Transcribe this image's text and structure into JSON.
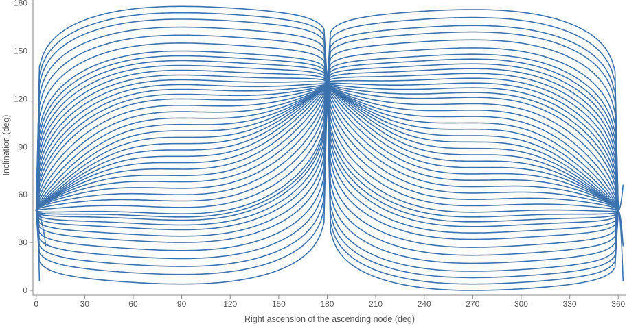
{
  "chart_data": {
    "type": "line",
    "title": "",
    "xlabel": "Right ascension of the ascending node (deg)",
    "ylabel": "Inclination (deg)",
    "xlim": [
      -2,
      365
    ],
    "ylim": [
      -3,
      182
    ],
    "xticks": [
      "0",
      "30",
      "60",
      "90",
      "120",
      "150",
      "180",
      "210",
      "240",
      "270",
      "300",
      "330",
      "360"
    ],
    "yticks": [
      "0",
      "30",
      "60",
      "90",
      "120",
      "150",
      "180"
    ],
    "grid": false,
    "legend": "none",
    "series_color": "#3c72ad",
    "convergence_points": [
      {
        "x": 0,
        "y": 50
      },
      {
        "x": 180,
        "y": 130
      },
      {
        "x": 360,
        "y": 50
      }
    ],
    "left_lobe_peaks": [
      4,
      10,
      15,
      20,
      25,
      30,
      34,
      38,
      41,
      44,
      46,
      48,
      52,
      56,
      60,
      64,
      68,
      72,
      76,
      80,
      84,
      88,
      92,
      96,
      100,
      104,
      108,
      112,
      116,
      120,
      123,
      126,
      129,
      132,
      135,
      138,
      141,
      144,
      147,
      150,
      155,
      160,
      165,
      170,
      174,
      178
    ],
    "right_lobe_peaks": [
      0,
      4,
      8,
      12,
      17,
      22,
      27,
      32,
      36,
      40,
      43,
      46,
      49,
      53,
      57,
      61,
      65,
      69,
      73,
      77,
      81,
      85,
      89,
      93,
      97,
      101,
      105,
      109,
      113,
      117,
      121,
      124,
      127,
      130,
      133,
      136,
      139,
      142,
      145,
      148,
      152,
      157,
      162,
      166,
      171,
      176
    ]
  }
}
